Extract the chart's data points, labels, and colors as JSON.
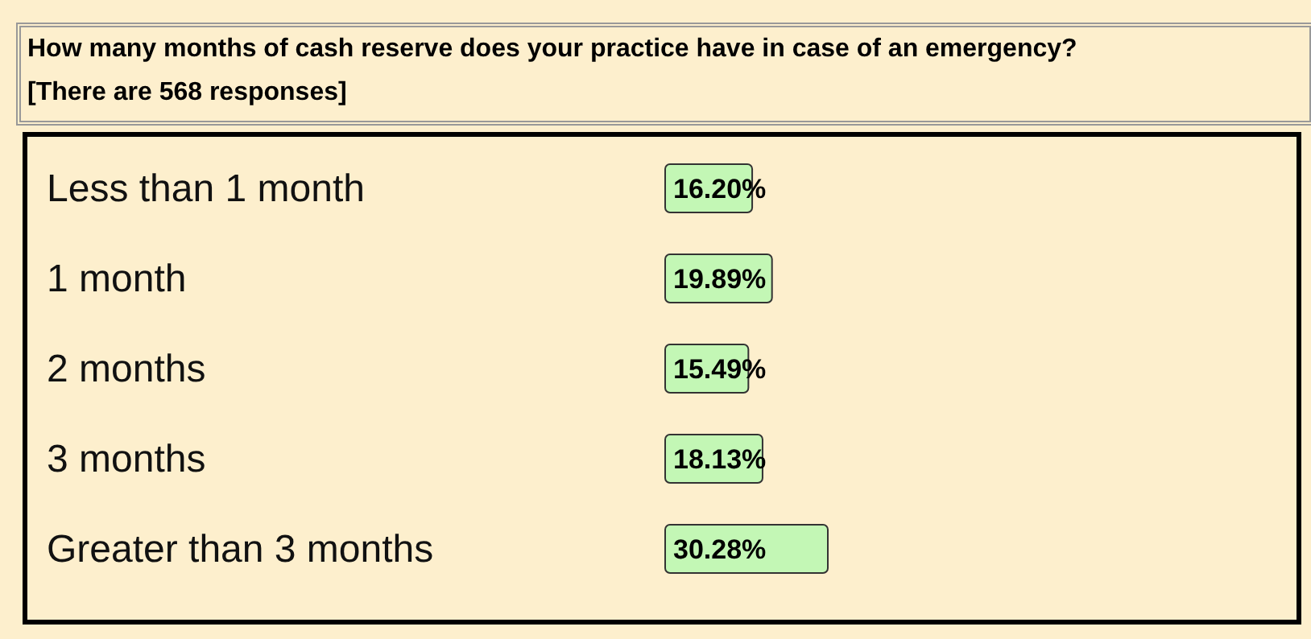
{
  "chart_data": {
    "type": "bar",
    "orientation": "horizontal",
    "title": "How many months of cash reserve does your practice have in case of an emergency?",
    "subtitle": "[There are 568 responses]",
    "categories": [
      "Less than 1 month",
      "1 month",
      "2 months",
      "3 months",
      "Greater than 3 months"
    ],
    "values": [
      16.2,
      19.89,
      15.49,
      18.13,
      30.28
    ],
    "value_labels": [
      "16.20%",
      "19.89%",
      "15.49%",
      "18.13%",
      "30.28%"
    ],
    "color": "#c3f7b5"
  }
}
